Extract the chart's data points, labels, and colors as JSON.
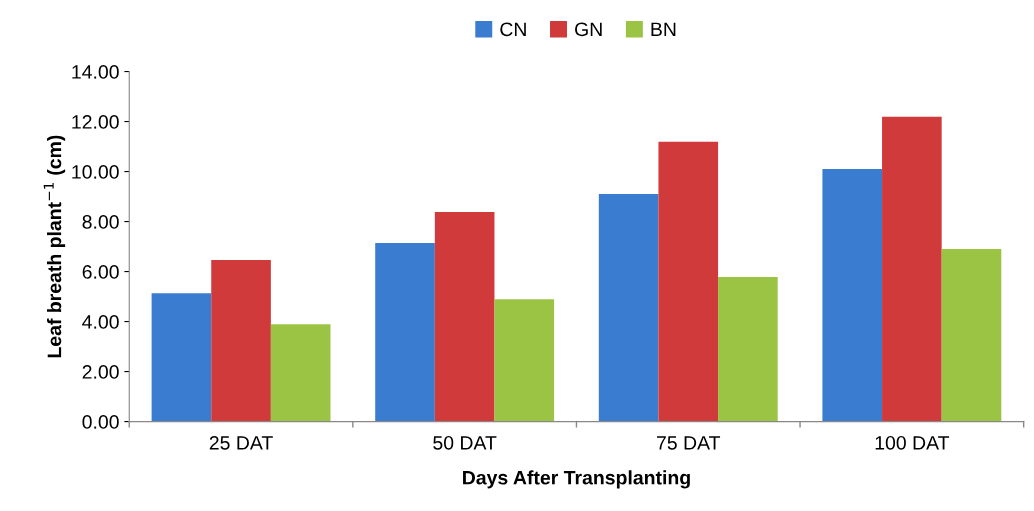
{
  "chart_data": {
    "type": "bar",
    "xlabel": "Days After Transplanting",
    "ylabel": "Leaf breath plant$^{−1}$ (cm)",
    "categories": [
      "25 DAT",
      "50 DAT",
      "75 DAT",
      "100 DAT"
    ],
    "series": [
      {
        "name": "CN",
        "color": "#3a7dd0",
        "values": [
          5.13,
          7.14,
          9.1,
          10.1
        ]
      },
      {
        "name": "GN",
        "color": "#d03a3a",
        "values": [
          6.46,
          8.38,
          11.19,
          12.19
        ]
      },
      {
        "name": "BN",
        "color": "#9bc444",
        "values": [
          3.89,
          4.89,
          5.78,
          6.9
        ]
      }
    ],
    "ylim": [
      0,
      14
    ],
    "yticks": [
      {
        "value": 0,
        "label": "0.00"
      },
      {
        "value": 2,
        "label": "2.00"
      },
      {
        "value": 4,
        "label": "4.00"
      },
      {
        "value": 6,
        "label": "6.00"
      },
      {
        "value": 8,
        "label": "8.00"
      },
      {
        "value": 10,
        "label": "10.00"
      },
      {
        "value": 12,
        "label": "12.00"
      },
      {
        "value": 14,
        "label": "14.00"
      }
    ],
    "grid": false,
    "legend": "top"
  }
}
